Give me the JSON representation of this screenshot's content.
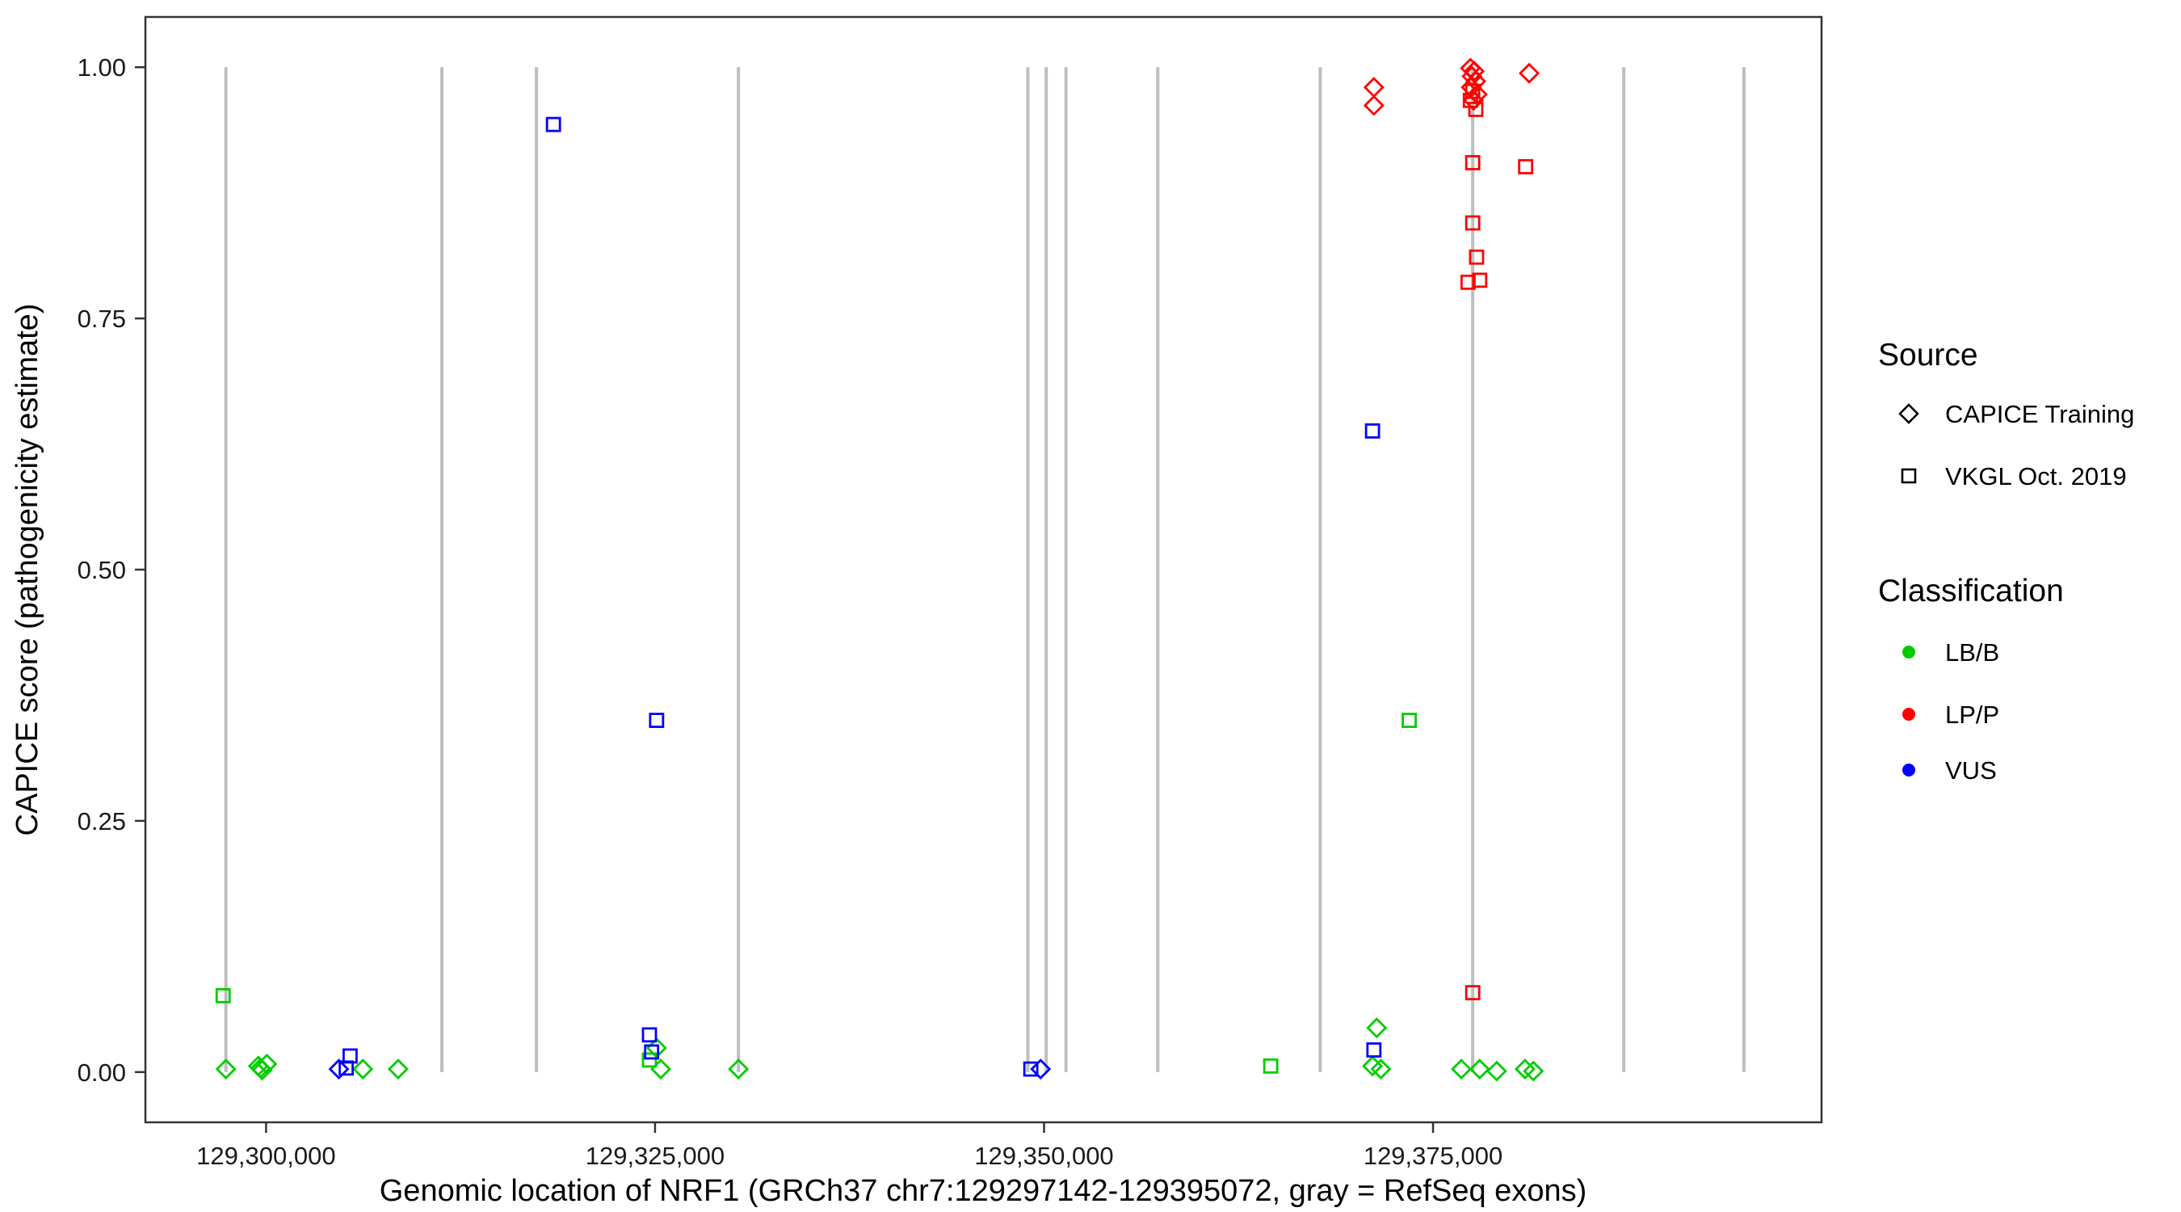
{
  "figure": {
    "description": "Scatter plot of CAPICE pathogenicity scores across the NRF1 gene"
  },
  "legend": {
    "source": {
      "title": "Source",
      "items": [
        {
          "label": "CAPICE Training",
          "shape": "diamond"
        },
        {
          "label": "VKGL Oct. 2019",
          "shape": "square"
        }
      ]
    },
    "classification": {
      "title": "Classification",
      "items": [
        {
          "label": "LB/B",
          "color": "#00CD00"
        },
        {
          "label": "LP/P",
          "color": "#FF0000"
        },
        {
          "label": "VUS",
          "color": "#0000FF"
        }
      ]
    }
  },
  "chart_data": {
    "type": "scatter",
    "title": "",
    "xlabel": "Genomic location of NRF1 (GRCh37 chr7:129297142-129395072, gray = RefSeq exons)",
    "ylabel": "CAPICE score (pathogenicity estimate)",
    "xlim": [
      129292245,
      129399969
    ],
    "ylim": [
      -0.05,
      1.05
    ],
    "grid": false,
    "legend_position": "right",
    "x_ticks": {
      "values": [
        129300000,
        129325000,
        129350000,
        129375000
      ],
      "labels": [
        "129,300,000",
        "129,325,000",
        "129,350,000",
        "129,375,000"
      ]
    },
    "y_ticks": {
      "values": [
        0,
        0.25,
        0.5,
        0.75,
        1
      ],
      "labels": [
        "0.00",
        "0.25",
        "0.50",
        "0.75",
        "1.00"
      ]
    },
    "exon_line_color": "#BEBEBE",
    "exon_lines_x": [
      129297420,
      129311300,
      129317380,
      129330360,
      129348960,
      129350140,
      129351410,
      129357310,
      129367750,
      129377550,
      129387260,
      129394980
    ],
    "series": [
      {
        "source": "CAPICE Training",
        "classification": "LB/B",
        "shape": "diamond",
        "color": "#00CD00",
        "points": [
          [
            129297420,
            0.003
          ],
          [
            129299500,
            0.006
          ],
          [
            129299750,
            0.002
          ],
          [
            129300050,
            0.008
          ],
          [
            129299650,
            0.004
          ],
          [
            129306220,
            0.003
          ],
          [
            129308490,
            0.003
          ],
          [
            129325100,
            0.024
          ],
          [
            129325370,
            0.003
          ],
          [
            129330360,
            0.003
          ],
          [
            129371380,
            0.044
          ],
          [
            129371110,
            0.006
          ],
          [
            129371650,
            0.003
          ],
          [
            129376820,
            0.003
          ],
          [
            129378000,
            0.003
          ],
          [
            129379090,
            0.001
          ],
          [
            129380910,
            0.003
          ],
          [
            129381450,
            0.001
          ]
        ]
      },
      {
        "source": "CAPICE Training",
        "classification": "LP/P",
        "shape": "diamond",
        "color": "#FF0000",
        "points": [
          [
            129371200,
            0.98
          ],
          [
            129371200,
            0.962
          ],
          [
            129377400,
            0.999
          ],
          [
            129377650,
            0.996
          ],
          [
            129377500,
            0.991
          ],
          [
            129377750,
            0.986
          ],
          [
            129377450,
            0.98
          ],
          [
            129377850,
            0.973
          ],
          [
            129377600,
            0.967
          ],
          [
            129381180,
            0.994
          ]
        ]
      },
      {
        "source": "CAPICE Training",
        "classification": "VUS",
        "shape": "diamond",
        "color": "#0000FF",
        "points": [
          [
            129304680,
            0.003
          ],
          [
            129349780,
            0.003
          ]
        ]
      },
      {
        "source": "VKGL Oct. 2019",
        "classification": "LB/B",
        "shape": "square",
        "color": "#00CD00",
        "points": [
          [
            129297240,
            0.076
          ],
          [
            129324640,
            0.012
          ],
          [
            129364570,
            0.006
          ],
          [
            129373470,
            0.35
          ]
        ]
      },
      {
        "source": "VKGL Oct. 2019",
        "classification": "LP/P",
        "shape": "square",
        "color": "#FF0000",
        "points": [
          [
            129377550,
            0.976
          ],
          [
            129377400,
            0.967
          ],
          [
            129377750,
            0.958
          ],
          [
            129377550,
            0.905
          ],
          [
            129380950,
            0.901
          ],
          [
            129377550,
            0.845
          ],
          [
            129377800,
            0.811
          ],
          [
            129377250,
            0.786
          ],
          [
            129378000,
            0.788
          ],
          [
            129377550,
            0.079
          ]
        ]
      },
      {
        "source": "VKGL Oct. 2019",
        "classification": "VUS",
        "shape": "square",
        "color": "#0000FF",
        "points": [
          [
            129318470,
            0.943
          ],
          [
            129325100,
            0.35
          ],
          [
            129305400,
            0.016
          ],
          [
            129305150,
            0.004
          ],
          [
            129324640,
            0.037
          ],
          [
            129324780,
            0.02
          ],
          [
            129349150,
            0.003
          ],
          [
            129371110,
            0.638
          ],
          [
            129371200,
            0.022
          ]
        ]
      }
    ]
  }
}
